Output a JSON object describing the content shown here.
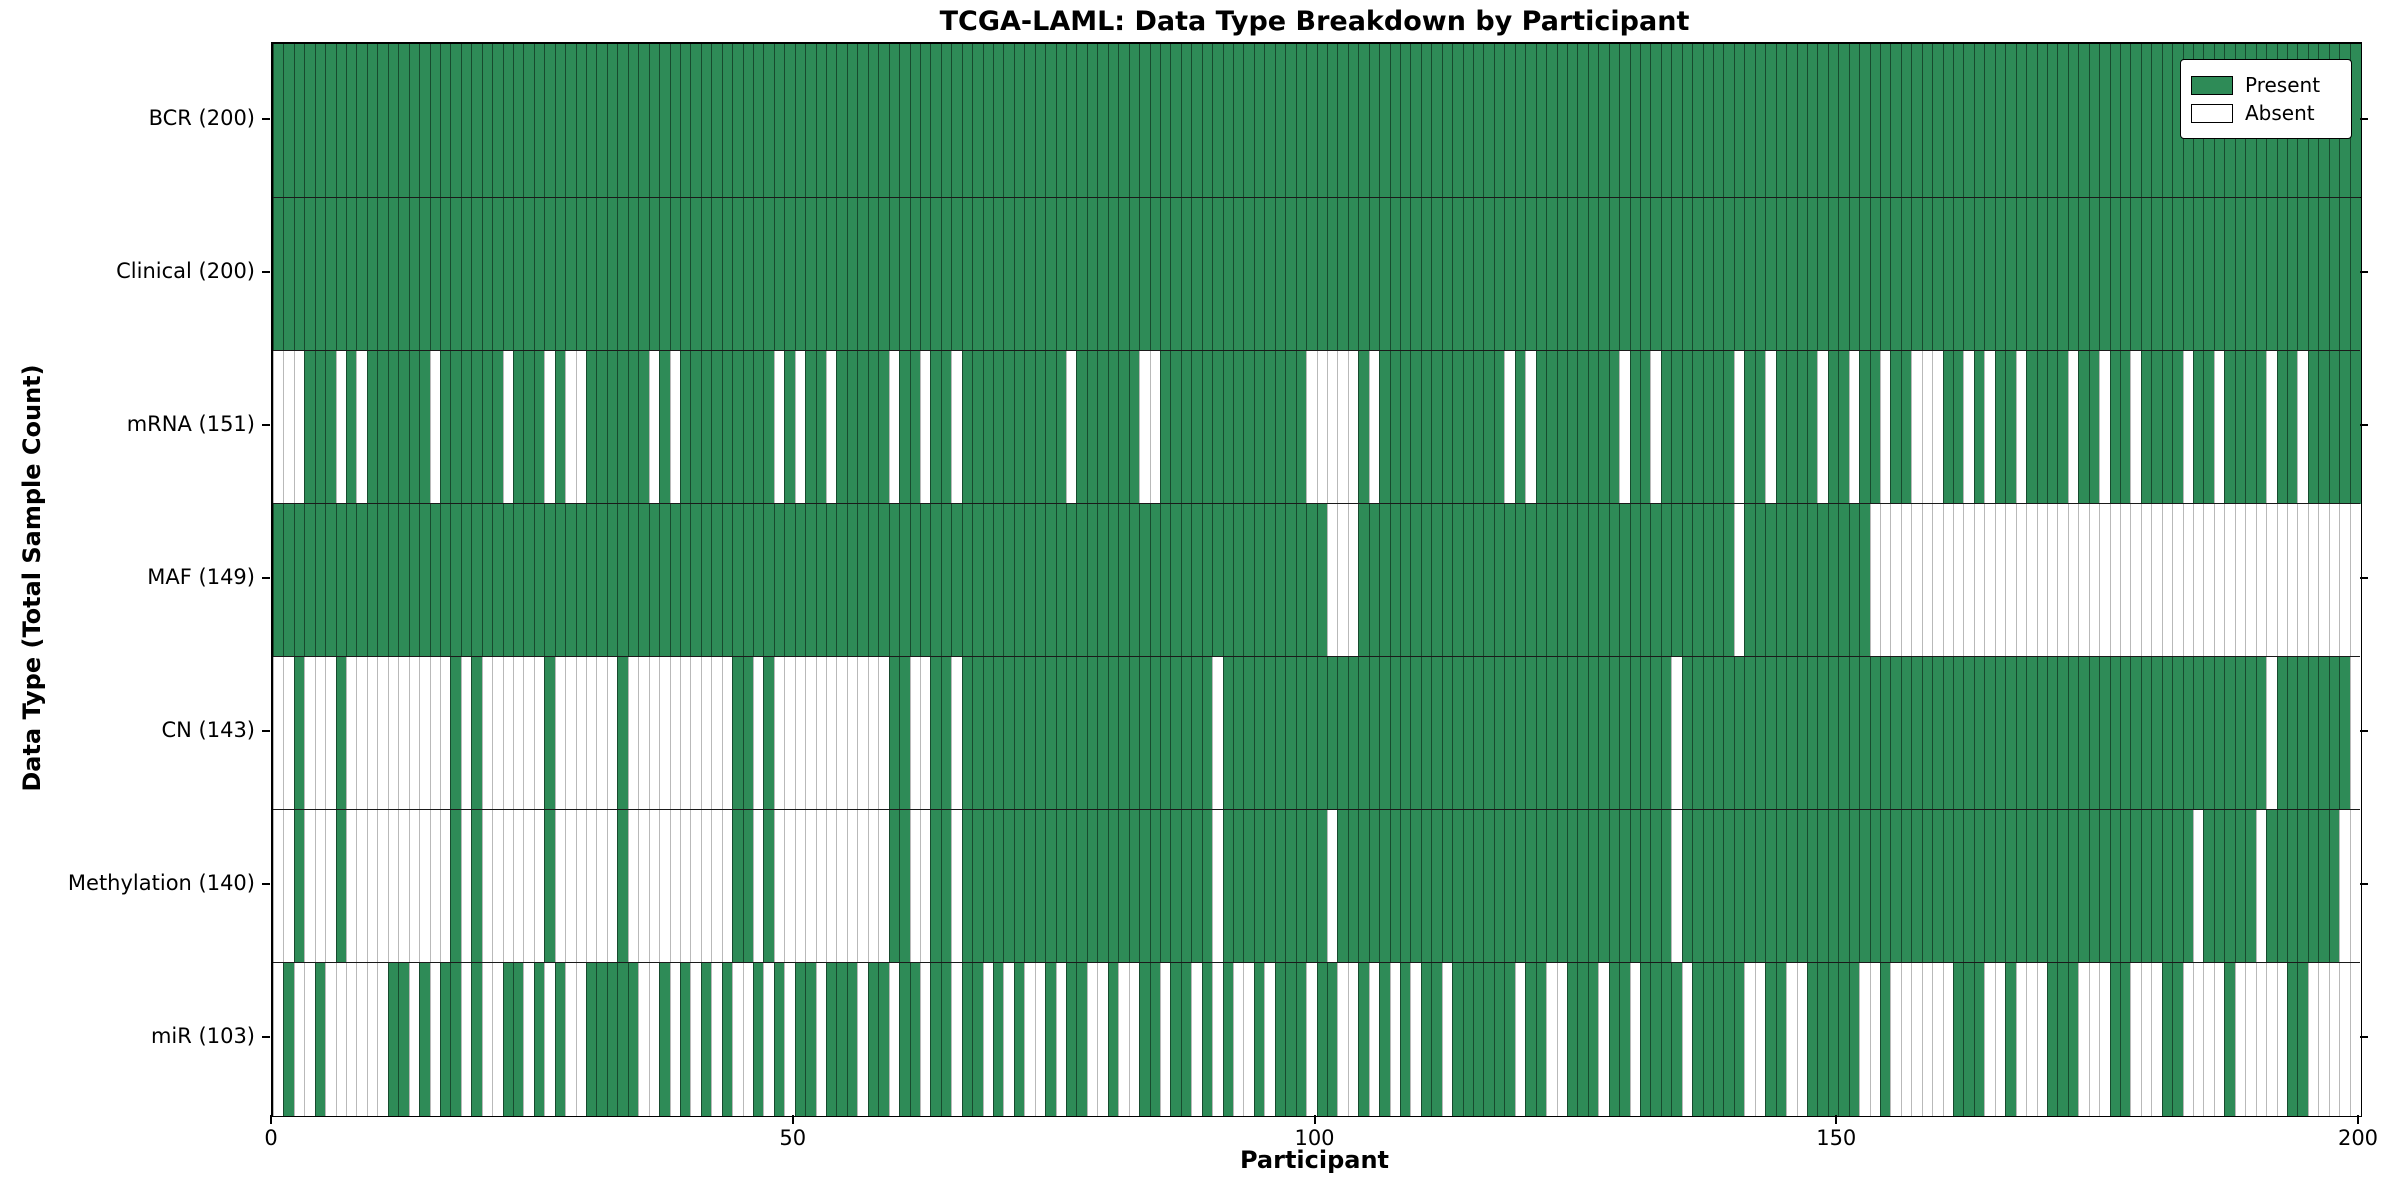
{
  "title": "TCGA-LAML: Data Type Breakdown by Participant",
  "axes": {
    "x_label": "Participant",
    "y_label": "Data Type (Total Sample Count)"
  },
  "legend": {
    "present_label": "Present",
    "absent_label": "Absent"
  },
  "colors": {
    "present": "#2e8b57",
    "absent": "#ffffff",
    "border": "#000000"
  },
  "chart_data": {
    "type": "heatmap",
    "title": "TCGA-LAML: Data Type Breakdown by Participant",
    "xlabel": "Participant",
    "ylabel": "Data Type (Total Sample Count)",
    "x_min": 0,
    "x_max": 200,
    "x_ticks": [
      0,
      50,
      100,
      150,
      200
    ],
    "n_participants": 200,
    "legend_entries": [
      "Present",
      "Absent"
    ],
    "value_encoding": "runs are [value,count] pairs per participant left-to-right; 1=Present, 0=Absent",
    "rows": [
      {
        "label": "BCR (200)",
        "data_type": "BCR",
        "present_count": 200,
        "runs": [
          [
            1,
            200
          ]
        ]
      },
      {
        "label": "Clinical (200)",
        "data_type": "Clinical",
        "present_count": 200,
        "runs": [
          [
            1,
            200
          ]
        ]
      },
      {
        "label": "mRNA (151)",
        "data_type": "mRNA",
        "present_count": 151,
        "runs": [
          [
            0,
            3
          ],
          [
            1,
            3
          ],
          [
            0,
            1
          ],
          [
            1,
            1
          ],
          [
            0,
            1
          ],
          [
            1,
            6
          ],
          [
            0,
            1
          ],
          [
            1,
            6
          ],
          [
            0,
            1
          ],
          [
            1,
            3
          ],
          [
            0,
            1
          ],
          [
            1,
            1
          ],
          [
            0,
            2
          ],
          [
            1,
            6
          ],
          [
            0,
            1
          ],
          [
            1,
            1
          ],
          [
            0,
            1
          ],
          [
            1,
            9
          ],
          [
            0,
            1
          ],
          [
            1,
            1
          ],
          [
            0,
            1
          ],
          [
            1,
            2
          ],
          [
            0,
            1
          ],
          [
            1,
            5
          ],
          [
            0,
            1
          ],
          [
            1,
            2
          ],
          [
            0,
            1
          ],
          [
            1,
            2
          ],
          [
            0,
            1
          ],
          [
            1,
            10
          ],
          [
            0,
            1
          ],
          [
            1,
            6
          ],
          [
            0,
            2
          ],
          [
            1,
            14
          ],
          [
            0,
            5
          ],
          [
            1,
            1
          ],
          [
            0,
            1
          ],
          [
            1,
            12
          ],
          [
            0,
            1
          ],
          [
            1,
            1
          ],
          [
            0,
            1
          ],
          [
            1,
            8
          ],
          [
            0,
            1
          ],
          [
            1,
            2
          ],
          [
            0,
            1
          ],
          [
            1,
            7
          ],
          [
            0,
            1
          ],
          [
            1,
            2
          ],
          [
            0,
            1
          ],
          [
            1,
            4
          ],
          [
            0,
            1
          ],
          [
            1,
            2
          ],
          [
            0,
            1
          ],
          [
            1,
            2
          ],
          [
            0,
            1
          ],
          [
            1,
            2
          ],
          [
            0,
            3
          ],
          [
            1,
            2
          ],
          [
            0,
            1
          ],
          [
            1,
            1
          ],
          [
            0,
            1
          ],
          [
            1,
            2
          ],
          [
            0,
            1
          ],
          [
            1,
            4
          ],
          [
            0,
            1
          ],
          [
            1,
            2
          ],
          [
            0,
            1
          ],
          [
            1,
            2
          ],
          [
            0,
            1
          ],
          [
            1,
            4
          ],
          [
            0,
            1
          ],
          [
            1,
            2
          ],
          [
            0,
            1
          ],
          [
            1,
            4
          ],
          [
            0,
            1
          ],
          [
            1,
            2
          ],
          [
            0,
            1
          ],
          [
            1,
            5
          ]
        ]
      },
      {
        "label": "MAF (149)",
        "data_type": "MAF",
        "present_count": 149,
        "runs": [
          [
            1,
            101
          ],
          [
            0,
            3
          ],
          [
            1,
            36
          ],
          [
            0,
            1
          ],
          [
            1,
            12
          ],
          [
            0,
            47
          ]
        ]
      },
      {
        "label": "CN (143)",
        "data_type": "CN",
        "present_count": 143,
        "runs": [
          [
            0,
            2
          ],
          [
            1,
            1
          ],
          [
            0,
            3
          ],
          [
            1,
            1
          ],
          [
            0,
            10
          ],
          [
            1,
            1
          ],
          [
            0,
            1
          ],
          [
            1,
            1
          ],
          [
            0,
            6
          ],
          [
            1,
            1
          ],
          [
            0,
            6
          ],
          [
            1,
            1
          ],
          [
            0,
            10
          ],
          [
            1,
            2
          ],
          [
            0,
            1
          ],
          [
            1,
            1
          ],
          [
            0,
            11
          ],
          [
            1,
            2
          ],
          [
            0,
            2
          ],
          [
            1,
            2
          ],
          [
            0,
            1
          ],
          [
            1,
            24
          ],
          [
            0,
            1
          ],
          [
            1,
            43
          ],
          [
            0,
            1
          ],
          [
            1,
            56
          ],
          [
            0,
            1
          ],
          [
            1,
            7
          ],
          [
            0,
            1
          ]
        ]
      },
      {
        "label": "Methylation (140)",
        "data_type": "Methylation",
        "present_count": 140,
        "runs": [
          [
            0,
            2
          ],
          [
            1,
            1
          ],
          [
            0,
            3
          ],
          [
            1,
            1
          ],
          [
            0,
            10
          ],
          [
            1,
            1
          ],
          [
            0,
            1
          ],
          [
            1,
            1
          ],
          [
            0,
            6
          ],
          [
            1,
            1
          ],
          [
            0,
            6
          ],
          [
            1,
            1
          ],
          [
            0,
            10
          ],
          [
            1,
            2
          ],
          [
            0,
            1
          ],
          [
            1,
            1
          ],
          [
            0,
            11
          ],
          [
            1,
            2
          ],
          [
            0,
            2
          ],
          [
            1,
            2
          ],
          [
            0,
            1
          ],
          [
            1,
            24
          ],
          [
            0,
            1
          ],
          [
            1,
            10
          ],
          [
            0,
            1
          ],
          [
            1,
            32
          ],
          [
            0,
            1
          ],
          [
            1,
            49
          ],
          [
            0,
            1
          ],
          [
            1,
            5
          ],
          [
            0,
            1
          ],
          [
            1,
            7
          ],
          [
            0,
            2
          ]
        ]
      },
      {
        "label": "miR (103)",
        "data_type": "miR",
        "present_count": 103,
        "runs": [
          [
            0,
            1
          ],
          [
            1,
            1
          ],
          [
            0,
            2
          ],
          [
            1,
            1
          ],
          [
            0,
            6
          ],
          [
            1,
            2
          ],
          [
            0,
            1
          ],
          [
            1,
            1
          ],
          [
            0,
            1
          ],
          [
            1,
            2
          ],
          [
            0,
            1
          ],
          [
            1,
            1
          ],
          [
            0,
            2
          ],
          [
            1,
            2
          ],
          [
            0,
            1
          ],
          [
            1,
            1
          ],
          [
            0,
            1
          ],
          [
            1,
            1
          ],
          [
            0,
            2
          ],
          [
            1,
            5
          ],
          [
            0,
            2
          ],
          [
            1,
            1
          ],
          [
            0,
            1
          ],
          [
            1,
            1
          ],
          [
            0,
            1
          ],
          [
            1,
            1
          ],
          [
            0,
            1
          ],
          [
            1,
            1
          ],
          [
            0,
            2
          ],
          [
            1,
            1
          ],
          [
            0,
            1
          ],
          [
            1,
            1
          ],
          [
            0,
            1
          ],
          [
            1,
            2
          ],
          [
            0,
            1
          ],
          [
            1,
            3
          ],
          [
            0,
            1
          ],
          [
            1,
            2
          ],
          [
            0,
            1
          ],
          [
            1,
            2
          ],
          [
            0,
            1
          ],
          [
            1,
            2
          ],
          [
            0,
            1
          ],
          [
            1,
            2
          ],
          [
            0,
            1
          ],
          [
            1,
            1
          ],
          [
            0,
            1
          ],
          [
            1,
            1
          ],
          [
            0,
            2
          ],
          [
            1,
            1
          ],
          [
            0,
            1
          ],
          [
            1,
            2
          ],
          [
            0,
            2
          ],
          [
            1,
            1
          ],
          [
            0,
            2
          ],
          [
            1,
            2
          ],
          [
            0,
            1
          ],
          [
            1,
            2
          ],
          [
            0,
            1
          ],
          [
            1,
            1
          ],
          [
            0,
            1
          ],
          [
            1,
            1
          ],
          [
            0,
            2
          ],
          [
            1,
            1
          ],
          [
            0,
            1
          ],
          [
            1,
            3
          ],
          [
            0,
            1
          ],
          [
            1,
            2
          ],
          [
            0,
            2
          ],
          [
            1,
            1
          ],
          [
            0,
            1
          ],
          [
            1,
            1
          ],
          [
            0,
            1
          ],
          [
            1,
            1
          ],
          [
            0,
            1
          ],
          [
            1,
            2
          ],
          [
            0,
            1
          ],
          [
            1,
            6
          ],
          [
            0,
            1
          ],
          [
            1,
            2
          ],
          [
            0,
            2
          ],
          [
            1,
            3
          ],
          [
            0,
            1
          ],
          [
            1,
            2
          ],
          [
            0,
            1
          ],
          [
            1,
            4
          ],
          [
            0,
            1
          ],
          [
            1,
            5
          ],
          [
            0,
            2
          ],
          [
            1,
            2
          ],
          [
            0,
            2
          ],
          [
            1,
            5
          ],
          [
            0,
            2
          ],
          [
            1,
            1
          ],
          [
            0,
            6
          ],
          [
            1,
            3
          ],
          [
            0,
            2
          ],
          [
            1,
            1
          ],
          [
            0,
            3
          ],
          [
            1,
            3
          ],
          [
            0,
            3
          ],
          [
            1,
            2
          ],
          [
            0,
            3
          ],
          [
            1,
            2
          ],
          [
            0,
            4
          ],
          [
            1,
            1
          ],
          [
            0,
            5
          ],
          [
            1,
            2
          ],
          [
            0,
            5
          ]
        ]
      }
    ]
  }
}
